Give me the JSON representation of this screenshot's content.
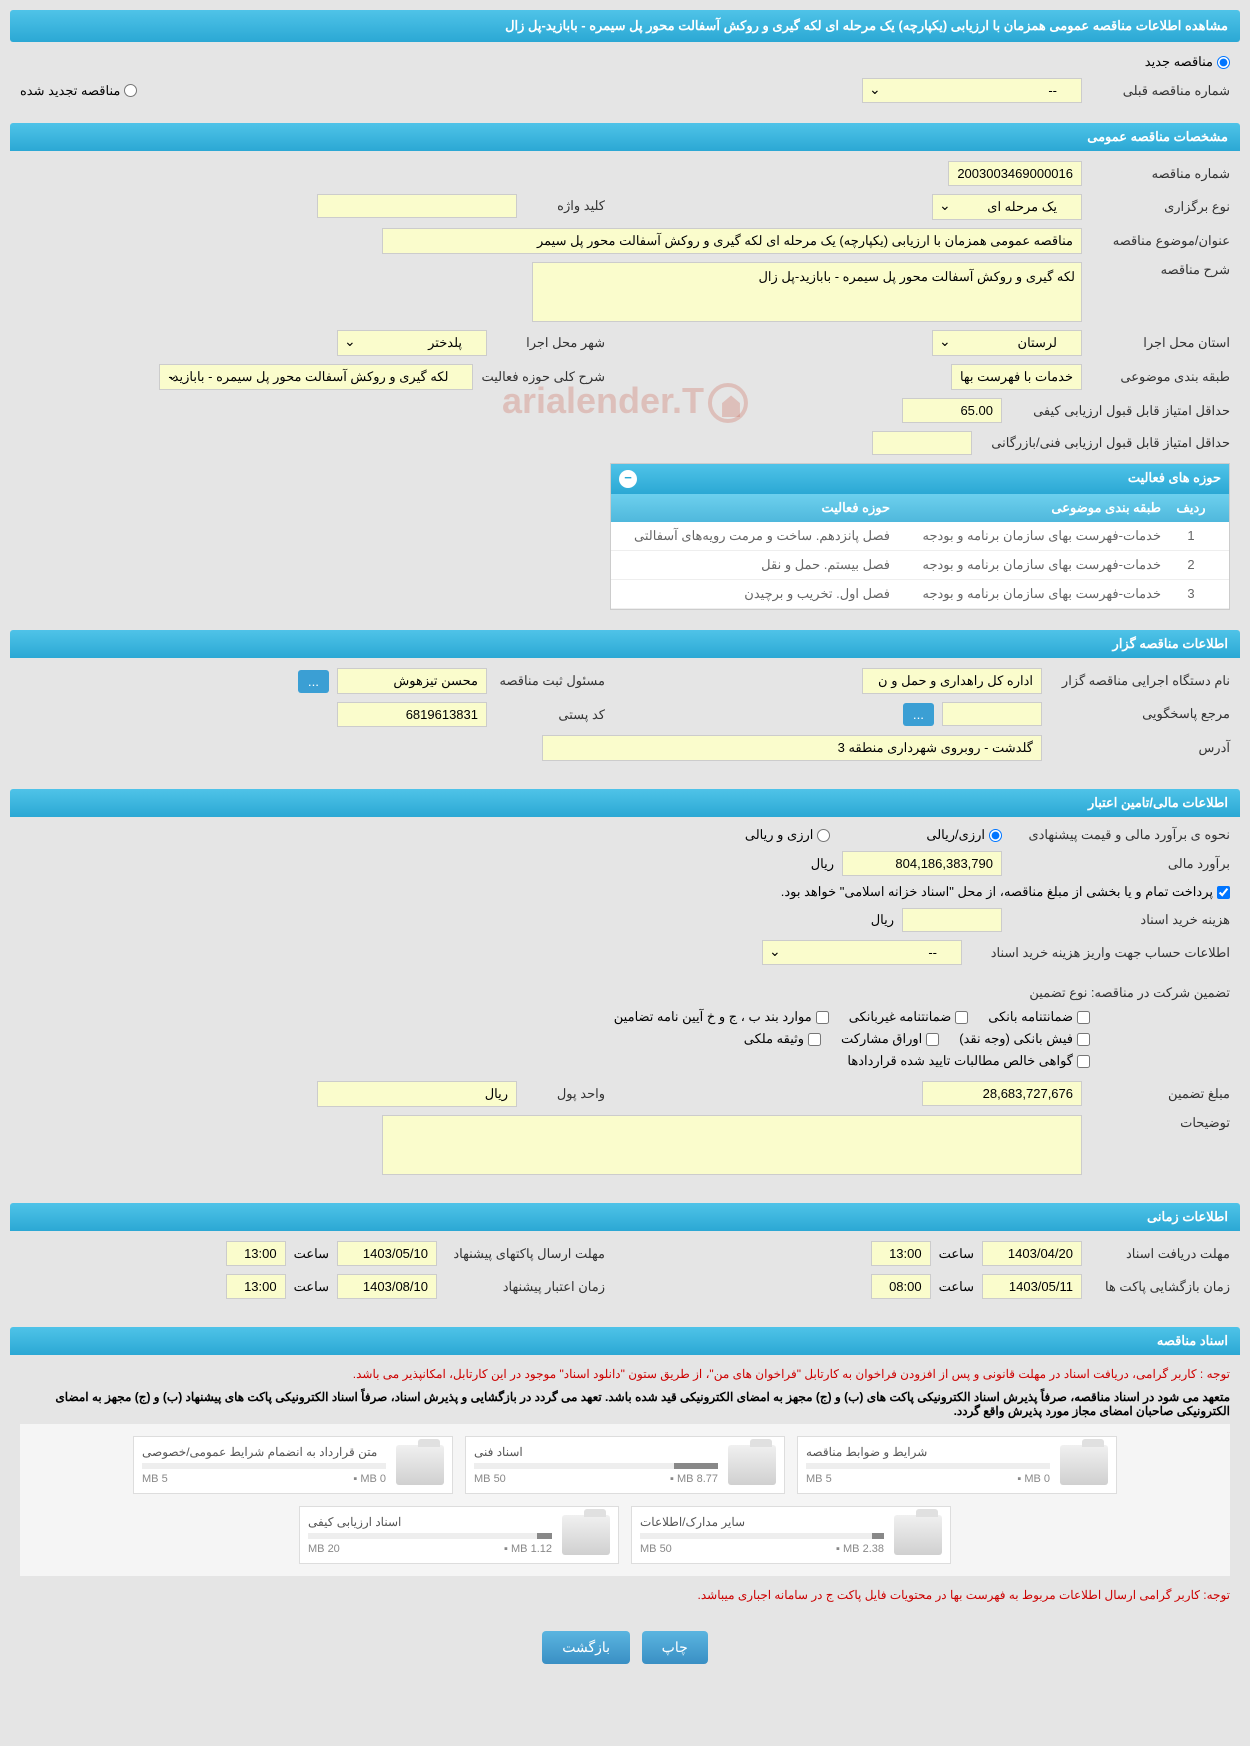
{
  "page_title": "مشاهده اطلاعات مناقصه عمومی همزمان با ارزیابی (یکپارچه) یک مرحله ای لکه گیری و روکش آسفالت محور پل سیمره - بابازید-پل زال",
  "tender_status": {
    "new": "مناقصه جدید",
    "renewed": "مناقصه تجدید شده",
    "prev_number_label": "شماره مناقصه قبلی",
    "prev_number_value": "--"
  },
  "general": {
    "header": "مشخصات مناقصه عمومی",
    "number_label": "شماره مناقصه",
    "number_value": "2003003469000016",
    "type_label": "نوع برگزاری",
    "type_value": "یک مرحله ای",
    "keyword_label": "کلید واژه",
    "keyword_value": "",
    "title_label": "عنوان/موضوع مناقصه",
    "title_value": "مناقصه عمومی همزمان با ارزیابی (یکپارچه) یک مرحله ای لکه گیری و روکش آسفالت محور پل سیمر",
    "desc_label": "شرح مناقصه",
    "desc_value": "لکه گیری و روکش آسفالت محور پل سیمره - بابازید-پل زال",
    "province_label": "استان محل اجرا",
    "province_value": "لرستان",
    "city_label": "شهر محل اجرا",
    "city_value": "پلدختر",
    "category_label": "طبقه بندی موضوعی",
    "category_value": "خدمات با فهرست بها",
    "scope_label": "شرح کلی حوزه فعالیت",
    "scope_value": "لکه گیری و روکش آسفالت محور پل سیمره - بابازید-",
    "min_qual_label": "حداقل امتیاز قابل قبول ارزیابی کیفی",
    "min_qual_value": "65.00",
    "min_tech_label": "حداقل امتیاز قابل قبول ارزیابی فنی/بازرگانی",
    "min_tech_value": ""
  },
  "activities": {
    "header": "حوزه های فعالیت",
    "col_row": "ردیف",
    "col_category": "طبقه بندی موضوعی",
    "col_scope": "حوزه فعالیت",
    "rows": [
      {
        "n": "1",
        "cat": "خدمات-فهرست بهای سازمان برنامه و بودجه",
        "scope": "فصل پانزدهم. ساخت و مرمت رویه‌های آسفالتی"
      },
      {
        "n": "2",
        "cat": "خدمات-فهرست بهای سازمان برنامه و بودجه",
        "scope": "فصل بیستم. حمل و نقل"
      },
      {
        "n": "3",
        "cat": "خدمات-فهرست بهای سازمان برنامه و بودجه",
        "scope": "فصل اول. تخریب و برچیدن"
      }
    ]
  },
  "organizer": {
    "header": "اطلاعات مناقصه گزار",
    "org_label": "نام دستگاه اجرایی مناقصه گزار",
    "org_value": "اداره کل راهداری و حمل و ن",
    "reg_label": "مسئول ثبت مناقصه",
    "reg_value": "محسن تیزهوش",
    "more_btn": "...",
    "contact_label": "مرجع پاسخگویی",
    "contact_value": "",
    "postal_label": "کد پستی",
    "postal_value": "6819613831",
    "address_label": "آدرس",
    "address_value": "گلدشت - روبروی شهرداری منطقه 3"
  },
  "financial": {
    "header": "اطلاعات مالی/تامین اعتبار",
    "estimate_method_label": "نحوه ی برآورد مالی و قیمت پیشنهادی",
    "rial_option": "ارزی/ریالی",
    "currency_option": "ارزی و ریالی",
    "estimate_label": "برآورد مالی",
    "estimate_value": "804,186,383,790",
    "rial_unit": "ريال",
    "treasury_note": "پرداخت تمام و یا بخشی از مبلغ مناقصه، از محل \"اسناد خزانه اسلامی\" خواهد بود.",
    "purchase_cost_label": "هزینه خرید اسناد",
    "purchase_cost_value": "",
    "account_label": "اطلاعات حساب جهت واریز هزینه خرید اسناد",
    "account_value": "--",
    "guarantee_label": "تضمین شرکت در مناقصه:   نوع تضمین",
    "guarantee_types": {
      "bank": "ضمانتنامه بانکی",
      "nonbank": "ضمانتنامه غیربانکی",
      "cases": "موارد بند ب ، ج و خ آیین نامه تضامین",
      "cash": "فیش بانکی (وجه نقد)",
      "securities": "اوراق مشارکت",
      "property": "وثیقه ملکی",
      "receivables": "گواهی خالص مطالبات تایید شده قراردادها"
    },
    "guarantee_amount_label": "مبلغ تضمین",
    "guarantee_amount_value": "28,683,727,676",
    "currency_unit_label": "واحد پول",
    "currency_unit_value": "ريال",
    "notes_label": "توضیحات",
    "notes_value": ""
  },
  "timing": {
    "header": "اطلاعات زمانی",
    "receive_label": "مهلت دریافت اسناد",
    "receive_date": "1403/04/20",
    "receive_time": "13:00",
    "submit_label": "مهلت ارسال پاکتهای پیشنهاد",
    "submit_date": "1403/05/10",
    "submit_time": "13:00",
    "open_label": "زمان بازگشایی پاکت ها",
    "open_date": "1403/05/11",
    "open_time": "08:00",
    "validity_label": "زمان اعتبار پیشنهاد",
    "validity_date": "1403/08/10",
    "validity_time": "13:00",
    "time_label": "ساعت"
  },
  "documents": {
    "header": "اسناد مناقصه",
    "note1": "توجه : کاربر گرامی، دریافت اسناد در مهلت قانونی و پس از افزودن فراخوان به کارتابل \"فراخوان های من\"، از طریق ستون \"دانلود اسناد\" موجود در این کارتابل، امکانپذیر می باشد.",
    "note2": "متعهد می شود در اسناد مناقصه، صرفاً پذیرش اسناد الکترونیکی پاکت های (ب) و (ج) مجهز به امضای الکترونیکی قید شده باشد. تعهد می گردد در بازگشایی و پذیرش اسناد، صرفاً اسناد الکترونیکی پاکت های پیشنهاد (ب) و (ج) مجهز به امضای الکترونیکی صاحبان امضای مجاز مورد پذیرش واقع گردد.",
    "cards": [
      {
        "title": "شرایط و ضوابط مناقصه",
        "used": "0 MB",
        "total": "5 MB",
        "pct": 0
      },
      {
        "title": "اسناد فنی",
        "used": "8.77 MB",
        "total": "50 MB",
        "pct": 18
      },
      {
        "title": "متن قرارداد به انضمام شرایط عمومی/خصوصی",
        "used": "0 MB",
        "total": "5 MB",
        "pct": 0
      },
      {
        "title": "سایر مدارک/اطلاعات",
        "used": "2.38 MB",
        "total": "50 MB",
        "pct": 5
      },
      {
        "title": "اسناد ارزیابی کیفی",
        "used": "1.12 MB",
        "total": "20 MB",
        "pct": 6
      }
    ],
    "bottom_note": "توجه: کاربر گرامی ارسال اطلاعات مربوط به فهرست بها در محتویات فایل پاکت ج در سامانه اجباری میباشد."
  },
  "buttons": {
    "print": "چاپ",
    "back": "بازگشت"
  },
  "watermark": "arialender.T"
}
